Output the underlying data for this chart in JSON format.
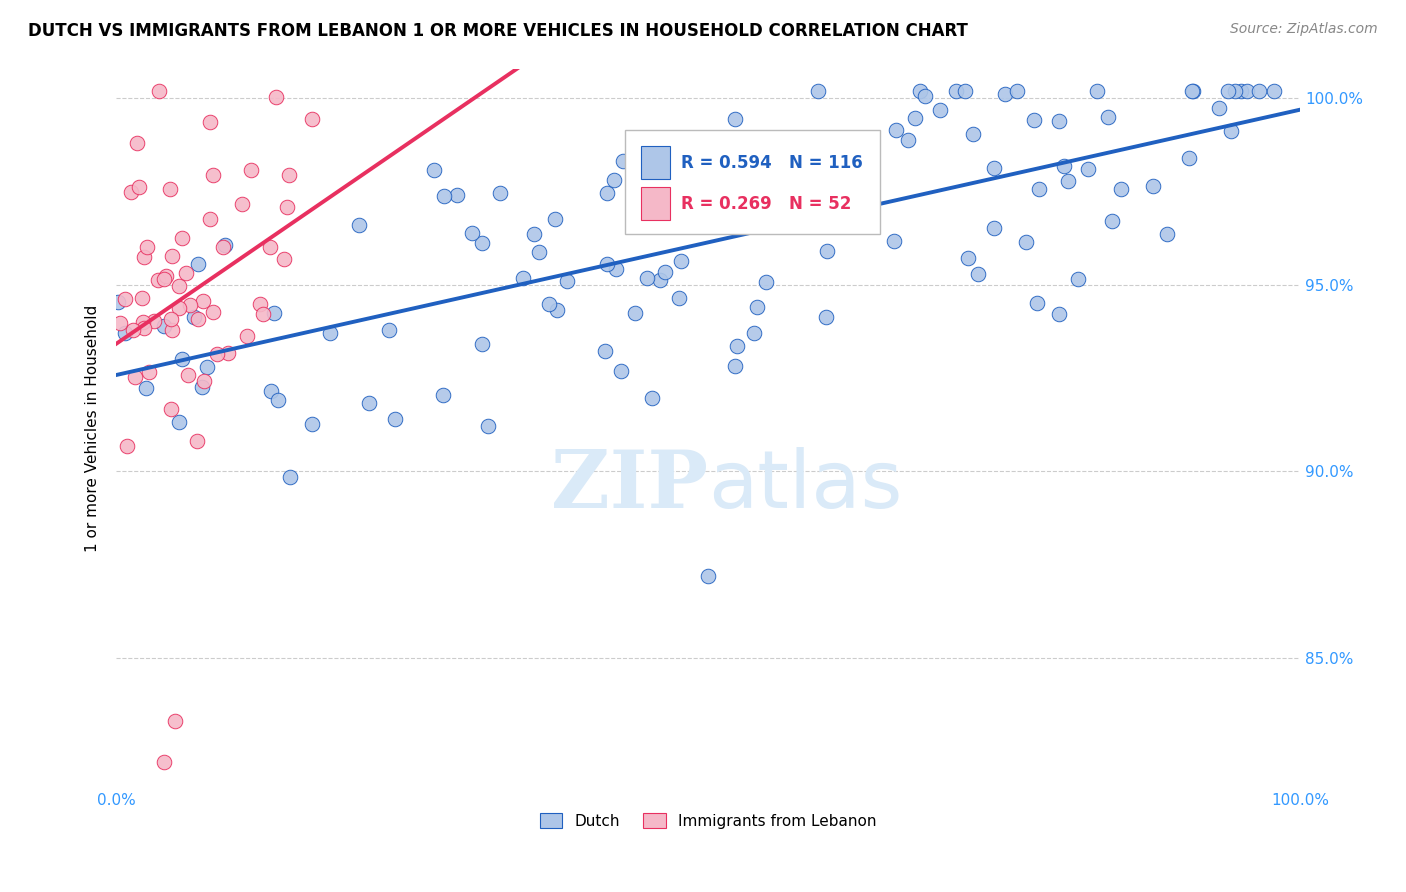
{
  "title": "DUTCH VS IMMIGRANTS FROM LEBANON 1 OR MORE VEHICLES IN HOUSEHOLD CORRELATION CHART",
  "source": "Source: ZipAtlas.com",
  "ylabel": "1 or more Vehicles in Household",
  "legend_dutch": "Dutch",
  "legend_lebanon": "Immigrants from Lebanon",
  "R_dutch": 0.594,
  "N_dutch": 116,
  "R_lebanon": 0.269,
  "N_lebanon": 52,
  "dutch_color": "#aec6e8",
  "lebanon_color": "#f5b8c8",
  "line_dutch_color": "#2060c0",
  "line_lebanon_color": "#e83060",
  "background_color": "#ffffff",
  "axis_label_color": "#3399ff",
  "watermark_color": "#daeaf8",
  "ytick_vals": [
    0.85,
    0.9,
    0.95,
    1.0
  ],
  "ytick_labels": [
    "85.0%",
    "90.0%",
    "95.0%",
    "100.0%"
  ],
  "ymin": 0.815,
  "ymax": 1.008,
  "xmin": 0.0,
  "xmax": 1.0
}
